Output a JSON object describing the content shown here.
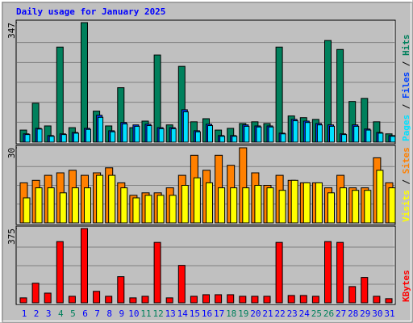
{
  "title": "Daily usage for January 2025",
  "categories": [
    "1",
    "2",
    "3",
    "4",
    "5",
    "6",
    "7",
    "8",
    "9",
    "10",
    "11",
    "12",
    "13",
    "14",
    "15",
    "16",
    "17",
    "18",
    "19",
    "20",
    "21",
    "22",
    "23",
    "24",
    "25",
    "26",
    "27",
    "28",
    "29",
    "30",
    "31"
  ],
  "category_colors": [
    "#0000ff",
    "#0000ff",
    "#0000ff",
    "#00805c",
    "#00805c",
    "#0000ff",
    "#0000ff",
    "#0000ff",
    "#0000ff",
    "#0000ff",
    "#00805c",
    "#00805c",
    "#0000ff",
    "#0000ff",
    "#0000ff",
    "#0000ff",
    "#0000ff",
    "#00805c",
    "#00805c",
    "#0000ff",
    "#0000ff",
    "#0000ff",
    "#0000ff",
    "#0000ff",
    "#00805c",
    "#00805c",
    "#0000ff",
    "#0000ff",
    "#0000ff",
    "#0000ff",
    "#0000ff"
  ],
  "legend_separator": " / ",
  "chart_data": [
    {
      "type": "bar",
      "ylim": [
        0,
        347
      ],
      "yticks": [
        347
      ],
      "grid": true,
      "series": [
        {
          "name": "Hits",
          "color": "#00805c",
          "values": [
            35,
            113,
            47,
            276,
            42,
            347,
            90,
            47,
            158,
            42,
            61,
            253,
            50,
            220,
            59,
            68,
            35,
            40,
            54,
            59,
            54,
            276,
            76,
            71,
            66,
            295,
            269,
            118,
            127,
            59,
            24
          ]
        },
        {
          "name": "Files",
          "color": "#0040ff",
          "values": [
            24,
            40,
            19,
            24,
            28,
            40,
            78,
            33,
            57,
            50,
            52,
            42,
            42,
            94,
            33,
            52,
            19,
            19,
            50,
            47,
            47,
            26,
            66,
            61,
            54,
            50,
            24,
            50,
            38,
            28,
            19
          ]
        },
        {
          "name": "Pages",
          "color": "#00e0ff",
          "values": [
            22,
            38,
            17,
            22,
            26,
            37,
            72,
            30,
            53,
            46,
            48,
            39,
            39,
            88,
            30,
            48,
            17,
            17,
            46,
            44,
            44,
            24,
            62,
            57,
            50,
            46,
            22,
            46,
            35,
            26,
            17
          ]
        }
      ]
    },
    {
      "type": "bar",
      "ylim": [
        0,
        30
      ],
      "yticks": [
        30
      ],
      "grid": true,
      "series": [
        {
          "name": "Sites",
          "color": "#ff8000",
          "values": [
            16,
            17,
            19,
            20,
            21,
            19,
            20,
            22,
            16,
            11,
            12,
            12,
            14,
            19,
            27,
            21,
            27,
            23,
            30,
            20,
            15,
            19,
            17,
            16,
            16,
            14,
            19,
            14,
            14,
            26,
            16
          ]
        },
        {
          "name": "Visits",
          "color": "#ffff00",
          "values": [
            10,
            14,
            14,
            12,
            14,
            14,
            19,
            19,
            14,
            10,
            11,
            11,
            11,
            15,
            18,
            16,
            14,
            14,
            14,
            15,
            14,
            13,
            17,
            16,
            16,
            12,
            14,
            13,
            13,
            21,
            14
          ]
        }
      ]
    },
    {
      "type": "bar",
      "ylim": [
        0,
        375
      ],
      "yticks": [
        375
      ],
      "grid": true,
      "series": [
        {
          "name": "KBytes",
          "color": "#ff0000",
          "values": [
            25,
            99,
            49,
            309,
            33,
            375,
            58,
            33,
            132,
            25,
            33,
            305,
            25,
            189,
            33,
            41,
            41,
            41,
            33,
            33,
            33,
            305,
            37,
            37,
            33,
            309,
            305,
            82,
            128,
            33,
            21
          ]
        }
      ]
    }
  ]
}
